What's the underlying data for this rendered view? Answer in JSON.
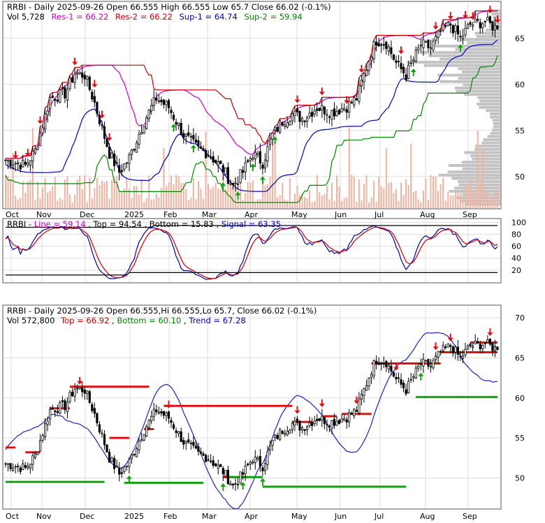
{
  "colors": {
    "background": "#ffffff",
    "border": "#555555",
    "grid": "#dddddd",
    "up_candle": "#000000",
    "volume": "#f0b3a0",
    "profile": "#b8b8b8",
    "res": "#cc00cc",
    "res2": "#cc0000",
    "sup": "#0000cc",
    "sup2": "#008800",
    "stoch_line": "#0000aa",
    "stoch_signal": "#cc0000",
    "bound": "#000000",
    "arrow_down": "#e01010",
    "arrow_up": "#10a010",
    "top_level": "#e01010",
    "bottom_level": "#10a010",
    "trend": "#2020cc"
  },
  "panel1": {
    "title": "RRBI - Daily 2025-09-26 Open 66.555  High 66.555  Low 65.7  Close 66.02 (-0.1%)",
    "vol": "Vol 5,728",
    "res1": "Res-1 = 66.22",
    "res2": "Res-2 = 66.22",
    "sup1": "Sup-1 = 64.74",
    "sup2": "Sup-2 = 59.94"
  },
  "panel2": {
    "label_prefix": "RRBI - ",
    "line": "Line = 59.14",
    "top": "Top = 94.54",
    "bottom": "Bottom = 15.83",
    "signal": "Signal = 63.35"
  },
  "panel3": {
    "title": "RRBI - Daily 2025-09-26 Open 66.555,Hi 66.555,Lo 65.7, Close 66.02 (-0.1%)",
    "vol": "Vol 572,800",
    "top": "Top = 66.92",
    "bottom": "Bottom = 60.10",
    "trend": "Trend = 67.28"
  },
  "chart_data": [
    {
      "type": "candlestick",
      "name": "price-with-support-resistance",
      "x_ticks": [
        "Oct",
        "Nov",
        "Dec",
        "2025",
        "Feb",
        "Mar",
        "Apr",
        "May",
        "Jun",
        "Jul",
        "Aug",
        "Sep"
      ],
      "y_ticks": [
        50,
        55,
        60,
        65
      ],
      "ylim": [
        46.5,
        69
      ],
      "close_anchors": [
        [
          0,
          51.8
        ],
        [
          8,
          51.2
        ],
        [
          12,
          52.8
        ],
        [
          18,
          58.5
        ],
        [
          24,
          59
        ],
        [
          28,
          61.2
        ],
        [
          32,
          61
        ],
        [
          36,
          58
        ],
        [
          42,
          52.5
        ],
        [
          46,
          50.5
        ],
        [
          50,
          52
        ],
        [
          56,
          56
        ],
        [
          61,
          58.5
        ],
        [
          66,
          57.5
        ],
        [
          72,
          54.5
        ],
        [
          78,
          53
        ],
        [
          82,
          52.5
        ],
        [
          88,
          50.8
        ],
        [
          92,
          49
        ],
        [
          96,
          50.5
        ],
        [
          100,
          52.5
        ],
        [
          104,
          51.5
        ],
        [
          108,
          54.5
        ],
        [
          112,
          56
        ],
        [
          116,
          56.8
        ],
        [
          120,
          56.3
        ],
        [
          126,
          57.5
        ],
        [
          132,
          57
        ],
        [
          138,
          57.6
        ],
        [
          142,
          58.5
        ],
        [
          148,
          63.5
        ],
        [
          150,
          64.8
        ],
        [
          154,
          64.5
        ],
        [
          158,
          62.3
        ],
        [
          162,
          61
        ],
        [
          166,
          63.2
        ],
        [
          168,
          64.3
        ],
        [
          172,
          64
        ],
        [
          176,
          65.7
        ],
        [
          180,
          66.5
        ],
        [
          184,
          65
        ],
        [
          188,
          66.5
        ],
        [
          194,
          66.8
        ],
        [
          199,
          66.02
        ]
      ],
      "n_bars": 200
    },
    {
      "type": "line",
      "name": "stochastic",
      "y_ticks": [
        20,
        40,
        60,
        80,
        100
      ],
      "ylim": [
        0,
        105
      ],
      "top": 94.54,
      "bottom": 15.83,
      "line_last": 59.14,
      "signal_last": 63.35
    },
    {
      "type": "candlestick",
      "name": "price-with-trend-channel",
      "y_ticks": [
        50,
        55,
        60,
        65,
        70
      ],
      "ylim": [
        46.2,
        71.5
      ],
      "top": 66.92,
      "bottom": 60.1,
      "trend": 67.28
    }
  ]
}
